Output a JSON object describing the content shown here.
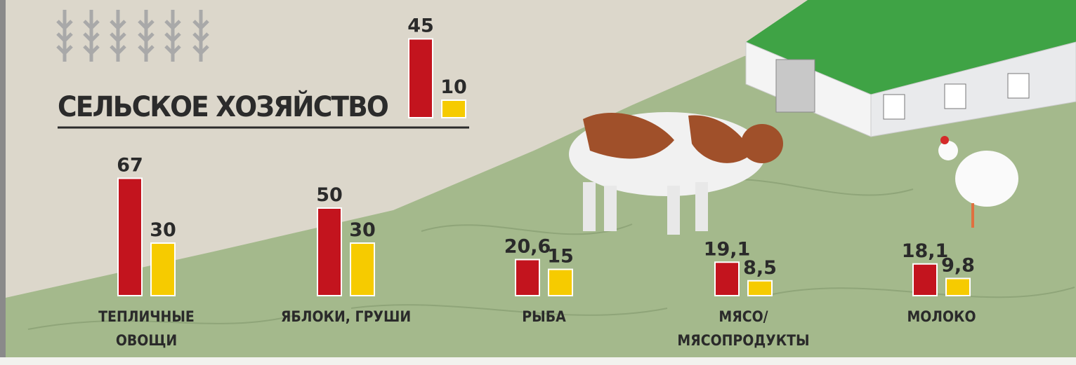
{
  "chart_data": {
    "type": "bar",
    "title": "СЕЛЬСКОЕ ХОЗЯЙСТВО",
    "categories": [
      null,
      "ТЕПЛИЧНЫЕ ОВОЩИ",
      "ЯБЛОКИ, ГРУШИ",
      "РЫБА",
      "МЯСО/ МЯСОПРОДУКТЫ",
      "МОЛОКО"
    ],
    "series": [
      {
        "color": "#c3141e",
        "values": [
          45,
          67,
          50,
          20.6,
          19.1,
          18.1
        ],
        "value_labels": [
          "45",
          "67",
          "50",
          "20,6",
          "19,1",
          "18,1"
        ]
      },
      {
        "color": "#f6cb00",
        "values": [
          10,
          30,
          30,
          15,
          8.5,
          9.8
        ],
        "value_labels": [
          "10",
          "30",
          "30",
          "15",
          "8,5",
          "9,8"
        ]
      }
    ]
  }
}
